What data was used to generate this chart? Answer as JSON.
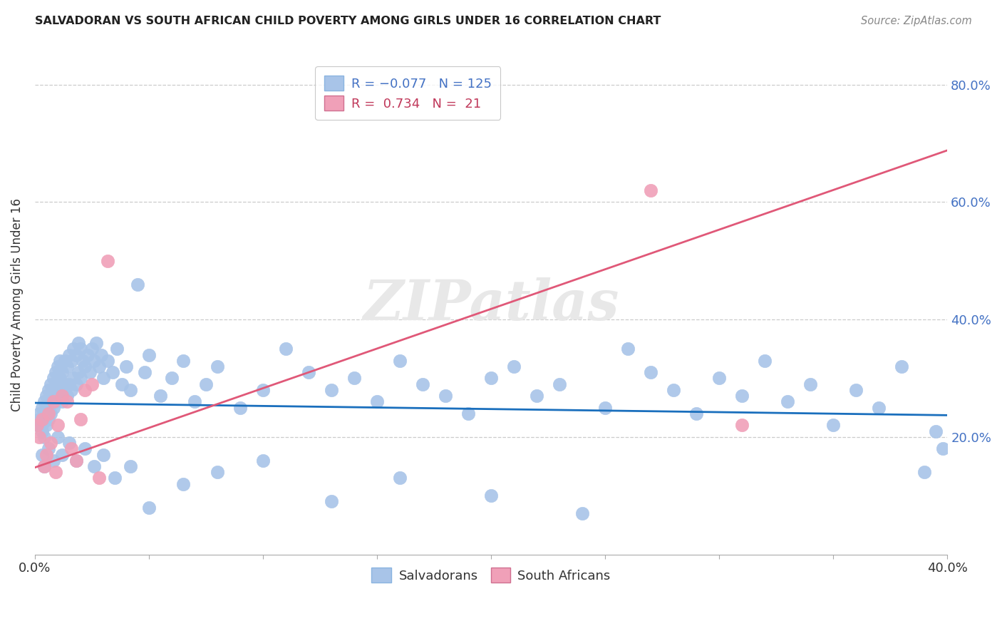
{
  "title": "SALVADORAN VS SOUTH AFRICAN CHILD POVERTY AMONG GIRLS UNDER 16 CORRELATION CHART",
  "source": "Source: ZipAtlas.com",
  "ylabel": "Child Poverty Among Girls Under 16",
  "xlim": [
    0.0,
    0.4
  ],
  "ylim": [
    0.0,
    0.85
  ],
  "yticks": [
    0.2,
    0.4,
    0.6,
    0.8
  ],
  "ytick_labels": [
    "20.0%",
    "40.0%",
    "60.0%",
    "80.0%"
  ],
  "blue_color": "#a8c4e8",
  "pink_color": "#f0a0b8",
  "blue_line_color": "#1a6fbd",
  "pink_line_color": "#e05878",
  "watermark_text": "ZIPatlas",
  "watermark_color": "#e8e8e8",
  "grid_color": "#cccccc",
  "title_color": "#222222",
  "source_color": "#888888",
  "ylabel_color": "#333333",
  "ytick_color": "#4472c4",
  "xtick_color": "#333333",
  "blue_line_x": [
    0.0,
    0.4
  ],
  "blue_line_y": [
    0.258,
    0.237
  ],
  "pink_line_x": [
    0.0,
    0.4
  ],
  "pink_line_y": [
    0.148,
    0.688
  ],
  "blue_x": [
    0.001,
    0.002,
    0.002,
    0.003,
    0.003,
    0.003,
    0.004,
    0.004,
    0.004,
    0.005,
    0.005,
    0.005,
    0.006,
    0.006,
    0.006,
    0.007,
    0.007,
    0.007,
    0.008,
    0.008,
    0.008,
    0.009,
    0.009,
    0.009,
    0.01,
    0.01,
    0.01,
    0.011,
    0.011,
    0.012,
    0.012,
    0.012,
    0.013,
    0.013,
    0.014,
    0.014,
    0.015,
    0.015,
    0.016,
    0.016,
    0.017,
    0.017,
    0.018,
    0.018,
    0.019,
    0.019,
    0.02,
    0.02,
    0.021,
    0.022,
    0.023,
    0.024,
    0.025,
    0.026,
    0.027,
    0.028,
    0.029,
    0.03,
    0.032,
    0.034,
    0.036,
    0.038,
    0.04,
    0.042,
    0.045,
    0.048,
    0.05,
    0.055,
    0.06,
    0.065,
    0.07,
    0.075,
    0.08,
    0.09,
    0.1,
    0.11,
    0.12,
    0.13,
    0.14,
    0.15,
    0.16,
    0.17,
    0.18,
    0.19,
    0.2,
    0.21,
    0.22,
    0.23,
    0.25,
    0.26,
    0.27,
    0.28,
    0.29,
    0.3,
    0.31,
    0.32,
    0.33,
    0.34,
    0.35,
    0.36,
    0.37,
    0.38,
    0.39,
    0.395,
    0.398,
    0.003,
    0.004,
    0.006,
    0.008,
    0.01,
    0.012,
    0.015,
    0.018,
    0.022,
    0.026,
    0.03,
    0.035,
    0.042,
    0.05,
    0.065,
    0.08,
    0.1,
    0.13,
    0.16,
    0.2,
    0.24
  ],
  "blue_y": [
    0.22,
    0.23,
    0.24,
    0.21,
    0.22,
    0.25,
    0.23,
    0.26,
    0.2,
    0.24,
    0.27,
    0.22,
    0.25,
    0.28,
    0.23,
    0.26,
    0.29,
    0.24,
    0.27,
    0.3,
    0.25,
    0.28,
    0.31,
    0.26,
    0.29,
    0.32,
    0.27,
    0.3,
    0.33,
    0.28,
    0.31,
    0.26,
    0.33,
    0.29,
    0.32,
    0.27,
    0.34,
    0.29,
    0.33,
    0.28,
    0.35,
    0.3,
    0.34,
    0.29,
    0.36,
    0.31,
    0.35,
    0.3,
    0.33,
    0.32,
    0.34,
    0.31,
    0.35,
    0.33,
    0.36,
    0.32,
    0.34,
    0.3,
    0.33,
    0.31,
    0.35,
    0.29,
    0.32,
    0.28,
    0.46,
    0.31,
    0.34,
    0.27,
    0.3,
    0.33,
    0.26,
    0.29,
    0.32,
    0.25,
    0.28,
    0.35,
    0.31,
    0.28,
    0.3,
    0.26,
    0.33,
    0.29,
    0.27,
    0.24,
    0.3,
    0.32,
    0.27,
    0.29,
    0.25,
    0.35,
    0.31,
    0.28,
    0.24,
    0.3,
    0.27,
    0.33,
    0.26,
    0.29,
    0.22,
    0.28,
    0.25,
    0.32,
    0.14,
    0.21,
    0.18,
    0.17,
    0.15,
    0.18,
    0.16,
    0.2,
    0.17,
    0.19,
    0.16,
    0.18,
    0.15,
    0.17,
    0.13,
    0.15,
    0.08,
    0.12,
    0.14,
    0.16,
    0.09,
    0.13,
    0.1,
    0.07
  ],
  "pink_x": [
    0.001,
    0.002,
    0.003,
    0.004,
    0.005,
    0.006,
    0.007,
    0.008,
    0.009,
    0.01,
    0.012,
    0.014,
    0.016,
    0.018,
    0.02,
    0.022,
    0.025,
    0.028,
    0.032,
    0.27,
    0.31
  ],
  "pink_y": [
    0.22,
    0.2,
    0.23,
    0.15,
    0.17,
    0.24,
    0.19,
    0.26,
    0.14,
    0.22,
    0.27,
    0.26,
    0.18,
    0.16,
    0.23,
    0.28,
    0.29,
    0.13,
    0.5,
    0.62,
    0.22
  ]
}
